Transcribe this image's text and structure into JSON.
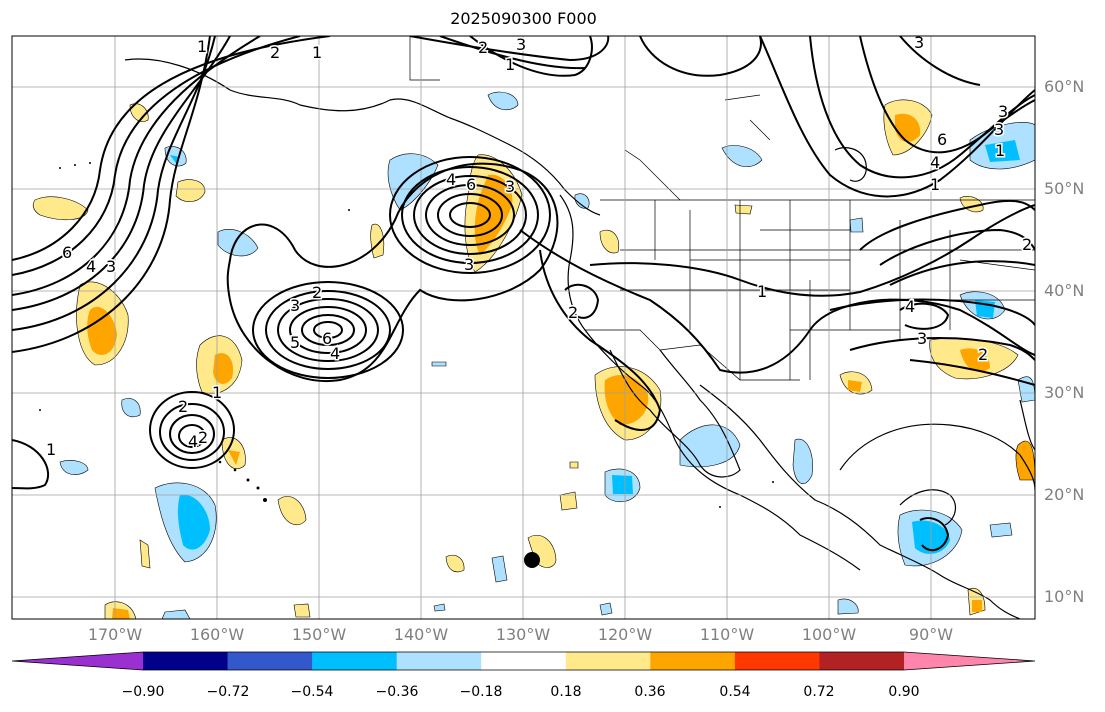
{
  "title": "2025090300 F000",
  "lon_labels": [
    "170°W",
    "160°W",
    "150°W",
    "140°W",
    "130°W",
    "120°W",
    "110°W",
    "100°W",
    "90°W"
  ],
  "lat_labels": [
    "60°N",
    "50°N",
    "40°N",
    "30°N",
    "20°N",
    "10°N"
  ],
  "colorbar": {
    "ticks": [
      "−0.90",
      "−0.72",
      "−0.54",
      "−0.36",
      "−0.18",
      "0.18",
      "0.36",
      "0.54",
      "0.72",
      "0.90"
    ],
    "colors": [
      "#9b30d0",
      "#00008b",
      "#3358cc",
      "#00bfff",
      "#aee0ff",
      "#ffffff",
      "#ffe98a",
      "#ffa500",
      "#ff3800",
      "#b22222",
      "#ff85ad"
    ]
  },
  "contour_labels": [
    "2",
    "1",
    "2",
    "3",
    "1",
    "6",
    "4",
    "3",
    "6",
    "4",
    "3",
    "2",
    "3",
    "5",
    "6",
    "4",
    "2",
    "1",
    "2",
    "4",
    "3",
    "1",
    "2",
    "1",
    "4",
    "6",
    "3",
    "3",
    "1",
    "1",
    "1",
    "4",
    "3",
    "2",
    "2",
    "3"
  ],
  "fill_colors": {
    "light_blue": "#aee0ff",
    "blue": "#00bfff",
    "yellow": "#ffe98a",
    "orange": "#ffa500"
  },
  "marker_label": ""
}
